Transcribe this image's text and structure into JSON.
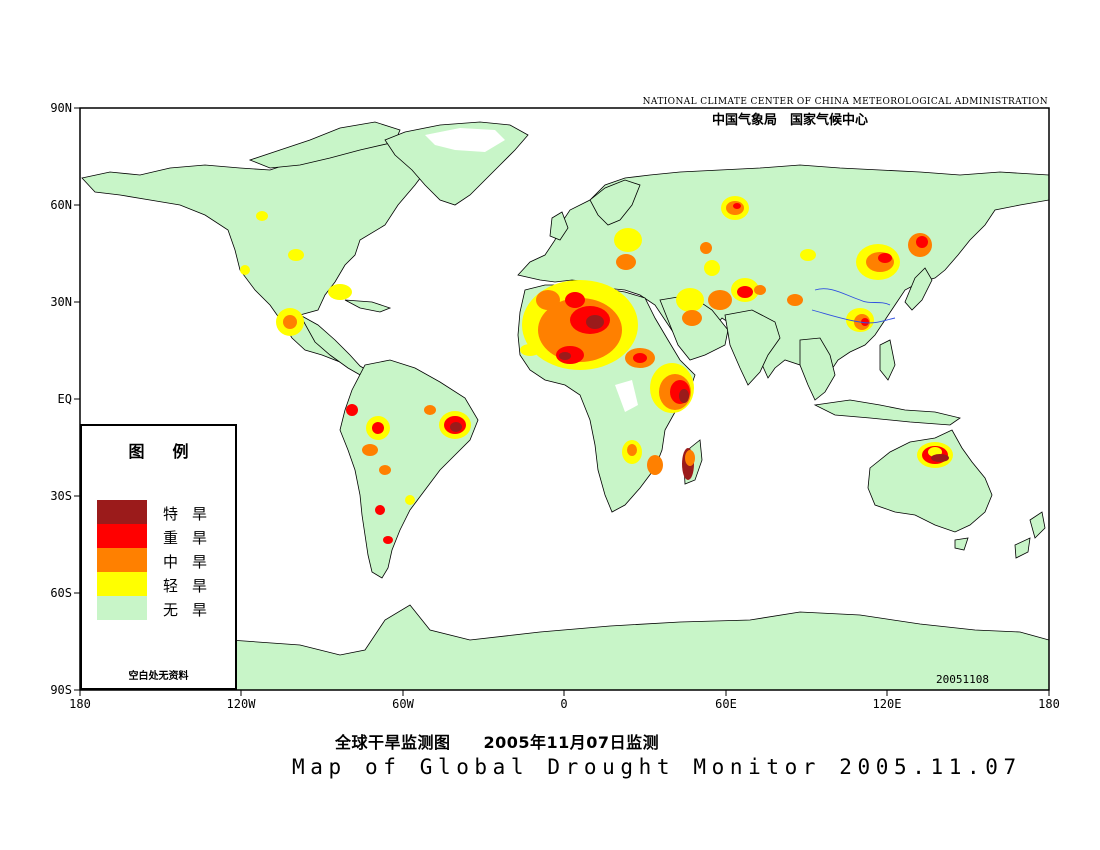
{
  "header": {
    "agency_en": "NATIONAL CLIMATE CENTER OF CHINA METEOROLOGICAL ADMINISTRATION",
    "agency_cn": "中国气象局　国家气候中心"
  },
  "map": {
    "land_color": "#c8f5c8",
    "ocean_color": "#ffffff",
    "border_color": "#000000",
    "river_color": "#3050e0",
    "lat_labels": [
      "90N",
      "60N",
      "30N",
      "EQ",
      "30S",
      "60S",
      "90S"
    ],
    "lon_labels": [
      "180",
      "120W",
      "60W",
      "0",
      "60E",
      "120E",
      "180"
    ],
    "date_code": "20051108"
  },
  "legend": {
    "title": "图例",
    "items": [
      {
        "label": "特旱",
        "color": "#9b1b1b"
      },
      {
        "label": "重旱",
        "color": "#ff0000"
      },
      {
        "label": "中旱",
        "color": "#ff8000"
      },
      {
        "label": "轻旱",
        "color": "#ffff00"
      },
      {
        "label": "无旱",
        "color": "#c8f5c8"
      }
    ],
    "note": "空白处无资料"
  },
  "title": {
    "cn": "全球干旱监测图　　2005年11月07日监测",
    "en": "Map of Global Drought Monitor 2005.11.07"
  }
}
